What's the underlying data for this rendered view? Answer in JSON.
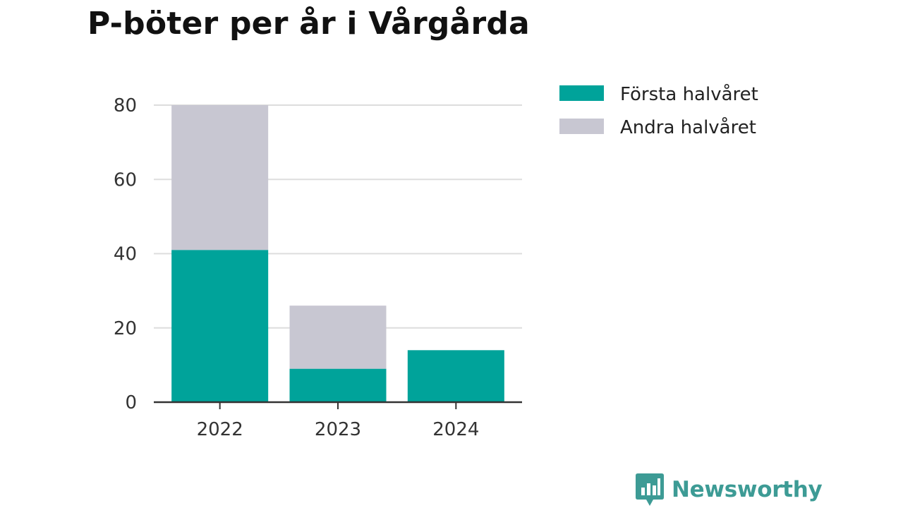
{
  "chart_data": {
    "type": "bar",
    "stacked": true,
    "title": "P-böter per år i Vårgårda",
    "xlabel": "",
    "ylabel": "",
    "categories": [
      "2022",
      "2023",
      "2024"
    ],
    "series": [
      {
        "name": "Första halvåret",
        "values": [
          41,
          9,
          14
        ],
        "color": "#00a39a"
      },
      {
        "name": "Andra halvåret",
        "values": [
          39,
          17,
          0
        ],
        "color": "#c8c7d2"
      }
    ],
    "ylim": [
      0,
      80
    ],
    "yticks": [
      0,
      20,
      40,
      60,
      80
    ],
    "grid": true,
    "legend_position": "top-right"
  },
  "logo": {
    "name": "Newsworthy",
    "icon": "bar-chart-speech-bubble-icon",
    "color": "#3d9b95"
  }
}
